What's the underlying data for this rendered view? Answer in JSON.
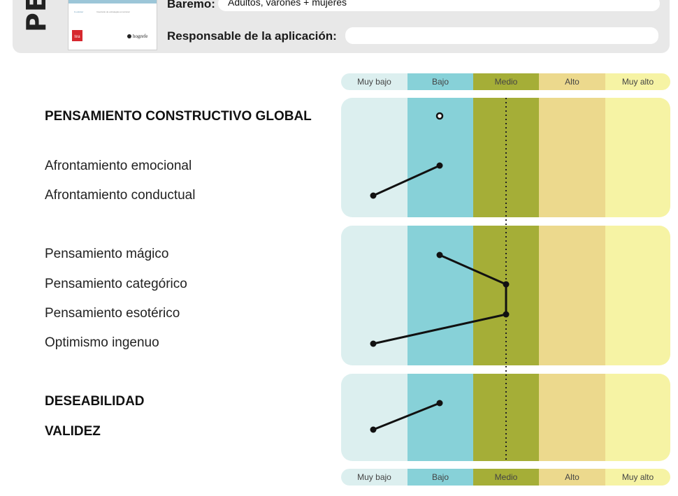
{
  "header": {
    "side_title": "PE",
    "thumbnail": {
      "line1": "IL eJercer",
      "line2": "Inventario de estrategias emocional",
      "brand_left": "tea",
      "brand_right": "hogrefe"
    },
    "baremo_label": "Baremo:",
    "baremo_value": "Adultos, varones + mujeres",
    "responsable_label": "Responsable de la aplicación:",
    "responsable_value": ""
  },
  "scale": {
    "labels": [
      "Muy bajo",
      "Bajo",
      "Medio",
      "Alto",
      "Muy alto"
    ]
  },
  "rows": {
    "global": "PENSAMIENTO CONSTRUCTIVO GLOBAL",
    "af_emocional": "Afrontamiento emocional",
    "af_conductual": "Afrontamiento conductual",
    "magico": "Pensamiento mágico",
    "categorico": "Pensamiento categórico",
    "esoterico": "Pensamiento esotérico",
    "optimismo": "Optimismo ingenuo",
    "deseabilidad": "DESEABILIDAD",
    "validez": "VALIDEZ"
  },
  "colors": {
    "muy_bajo": "#dcefef",
    "bajo": "#87d1d8",
    "medio": "#a5ae37",
    "alto": "#ecd98d",
    "muy_alto": "#f6f3a4",
    "header_bg": "#e8e8e8",
    "line": "#111111"
  },
  "chart_data": {
    "type": "line",
    "categories": [
      "Muy bajo",
      "Bajo",
      "Medio",
      "Alto",
      "Muy alto"
    ],
    "groups": [
      {
        "points": [
          {
            "label": "PENSAMIENTO CONSTRUCTIVO GLOBAL",
            "level": "Bajo",
            "marker": "open"
          }
        ]
      },
      {
        "points": [
          {
            "label": "Afrontamiento emocional",
            "level": "Bajo"
          },
          {
            "label": "Afrontamiento conductual",
            "level": "Muy bajo"
          }
        ]
      },
      {
        "points": [
          {
            "label": "Pensamiento mágico",
            "level": "Bajo"
          },
          {
            "label": "Pensamiento categórico",
            "level": "Medio"
          },
          {
            "label": "Pensamiento esotérico",
            "level": "Medio"
          },
          {
            "label": "Optimismo ingenuo",
            "level": "Muy bajo"
          }
        ]
      },
      {
        "points": [
          {
            "label": "DESEABILIDAD",
            "level": "Bajo"
          },
          {
            "label": "VALIDEZ",
            "level": "Muy bajo"
          }
        ]
      }
    ],
    "reference_line": "Medio"
  }
}
